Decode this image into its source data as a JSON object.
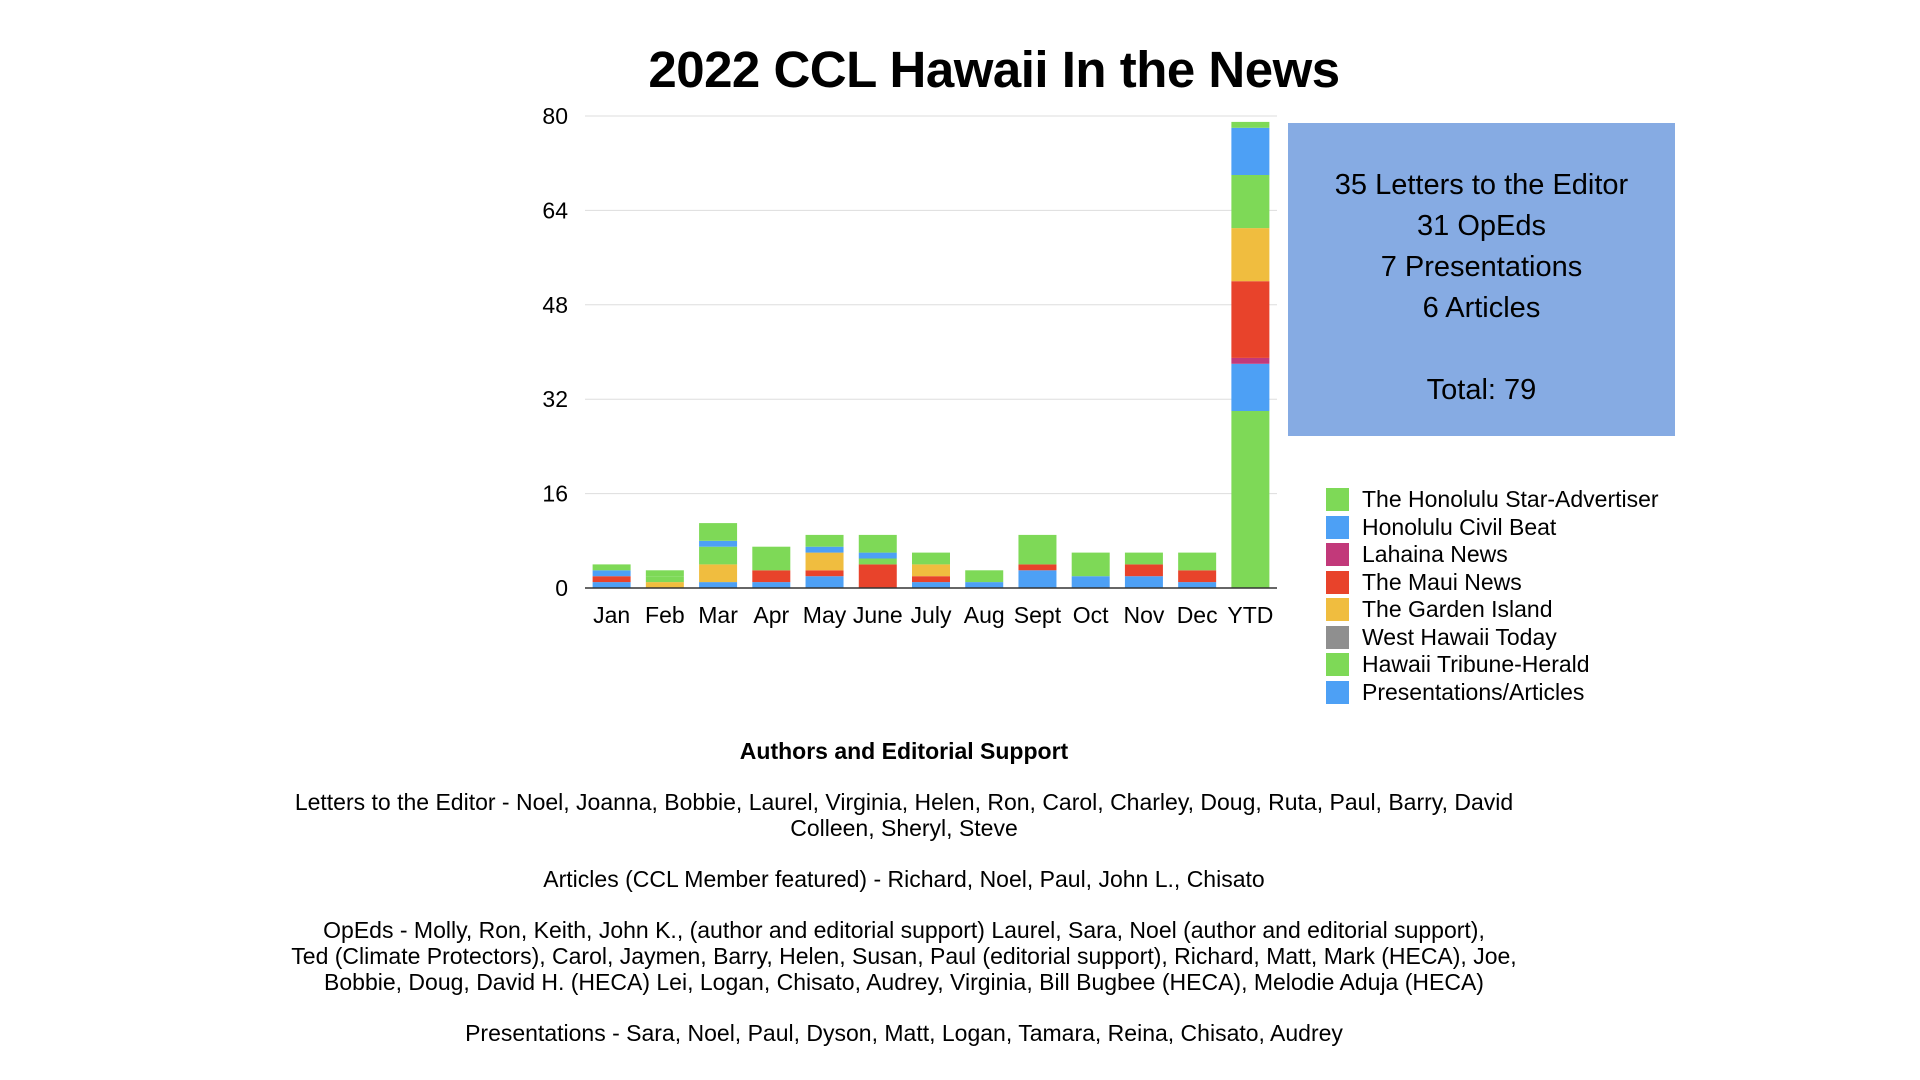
{
  "chart_data": {
    "type": "bar",
    "stacked": true,
    "title": "2022 CCL Hawaii In the News",
    "categories": [
      "Jan",
      "Feb",
      "Mar",
      "Apr",
      "May",
      "June",
      "July",
      "Aug",
      "Sept",
      "Oct",
      "Nov",
      "Dec",
      "YTD"
    ],
    "ylim": [
      0,
      80
    ],
    "yticks": [
      0,
      16,
      32,
      48,
      64,
      80
    ],
    "grid": true,
    "legend_position": "right",
    "series": [
      {
        "name": "The Honolulu Star-Advertiser",
        "color": "#7ed957",
        "values": [
          0,
          0,
          0,
          0,
          0,
          0,
          0,
          0,
          0,
          0,
          0,
          0,
          30
        ]
      },
      {
        "name": "Honolulu Civil Beat",
        "color": "#4da0f5",
        "values": [
          1,
          0,
          1,
          1,
          2,
          0,
          1,
          1,
          3,
          2,
          2,
          1,
          8
        ]
      },
      {
        "name": "Lahaina News",
        "color": "#c2397a",
        "values": [
          0,
          0,
          0,
          0,
          0,
          0,
          0,
          0,
          0,
          0,
          0,
          0,
          1
        ]
      },
      {
        "name": "The Maui News",
        "color": "#e8432b",
        "values": [
          1,
          0,
          0,
          2,
          1,
          4,
          1,
          0,
          1,
          0,
          2,
          2,
          13
        ]
      },
      {
        "name": "The Garden Island",
        "color": "#f0bd3f",
        "values": [
          0,
          1,
          3,
          0,
          3,
          0,
          2,
          0,
          0,
          0,
          0,
          0,
          9
        ]
      },
      {
        "name": "West Hawaii Today",
        "color": "#8f8f8f",
        "values": [
          0,
          0,
          0,
          0,
          0,
          0,
          0,
          0,
          0,
          0,
          0,
          0,
          0
        ]
      },
      {
        "name": "Hawaii Tribune-Herald",
        "color": "#7ed957",
        "values": [
          0,
          1,
          3,
          2,
          0,
          1,
          0,
          0,
          1,
          0,
          1,
          0,
          9
        ]
      },
      {
        "name": "Presentations/Articles",
        "color": "#4da0f5",
        "values": [
          1,
          0,
          1,
          0,
          1,
          1,
          0,
          0,
          0,
          0,
          0,
          0,
          0
        ]
      },
      {
        "name": "",
        "color": "#7ed957",
        "values": [
          1,
          1,
          3,
          2,
          2,
          3,
          2,
          2,
          4,
          4,
          1,
          3,
          0
        ]
      },
      {
        "name": "",
        "color": "#4da0f5",
        "values": [
          0,
          0,
          0,
          0,
          0,
          0,
          0,
          0,
          0,
          0,
          0,
          0,
          8
        ]
      },
      {
        "name": "",
        "color": "#7ed957",
        "values": [
          0,
          0,
          0,
          0,
          0,
          0,
          0,
          0,
          0,
          0,
          0,
          0,
          1
        ]
      }
    ]
  },
  "summary": {
    "lines": [
      "35 Letters to the Editor",
      "31 OpEds",
      "7 Presentations",
      "6 Articles"
    ],
    "total": "Total: 79"
  },
  "authors": {
    "heading": "Authors and Editorial Support",
    "letters": [
      "Letters to the Editor - Noel, Joanna, Bobbie, Laurel, Virginia, Helen, Ron, Carol, Charley, Doug, Ruta, Paul, Barry, David",
      "Colleen, Sheryl, Steve"
    ],
    "articles": [
      "Articles (CCL Member featured) - Richard, Noel, Paul, John L., Chisato"
    ],
    "opeds": [
      "OpEds - Molly, Ron, Keith, John K., (author and editorial support) Laurel, Sara, Noel (author and editorial support),",
      "Ted (Climate Protectors), Carol, Jaymen, Barry, Helen, Susan, Paul (editorial support), Richard, Matt, Mark (HECA), Joe,",
      "Bobbie, Doug, David H. (HECA) Lei, Logan, Chisato, Audrey, Virginia, Bill Bugbee (HECA), Melodie Aduja (HECA)"
    ],
    "presentations": [
      "Presentations - Sara, Noel, Paul, Dyson, Matt, Logan, Tamara, Reina, Chisato, Audrey"
    ]
  }
}
